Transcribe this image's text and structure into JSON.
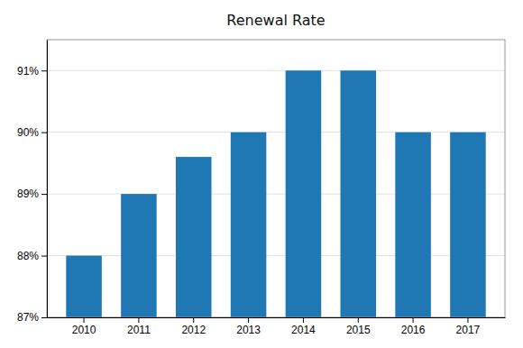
{
  "chart_data": {
    "type": "bar",
    "title": "Renewal Rate",
    "categories": [
      "2010",
      "2011",
      "2012",
      "2013",
      "2014",
      "2015",
      "2016",
      "2017"
    ],
    "values": [
      88.0,
      89.0,
      89.6,
      90.0,
      91.0,
      91.0,
      90.0,
      90.0
    ],
    "ylim": [
      87,
      91.5
    ],
    "yticks": [
      {
        "value": 87,
        "label": "87%"
      },
      {
        "value": 88,
        "label": "88%"
      },
      {
        "value": 89,
        "label": "89%"
      },
      {
        "value": 90,
        "label": "90%"
      },
      {
        "value": 91,
        "label": "91%"
      }
    ],
    "grid": true
  }
}
